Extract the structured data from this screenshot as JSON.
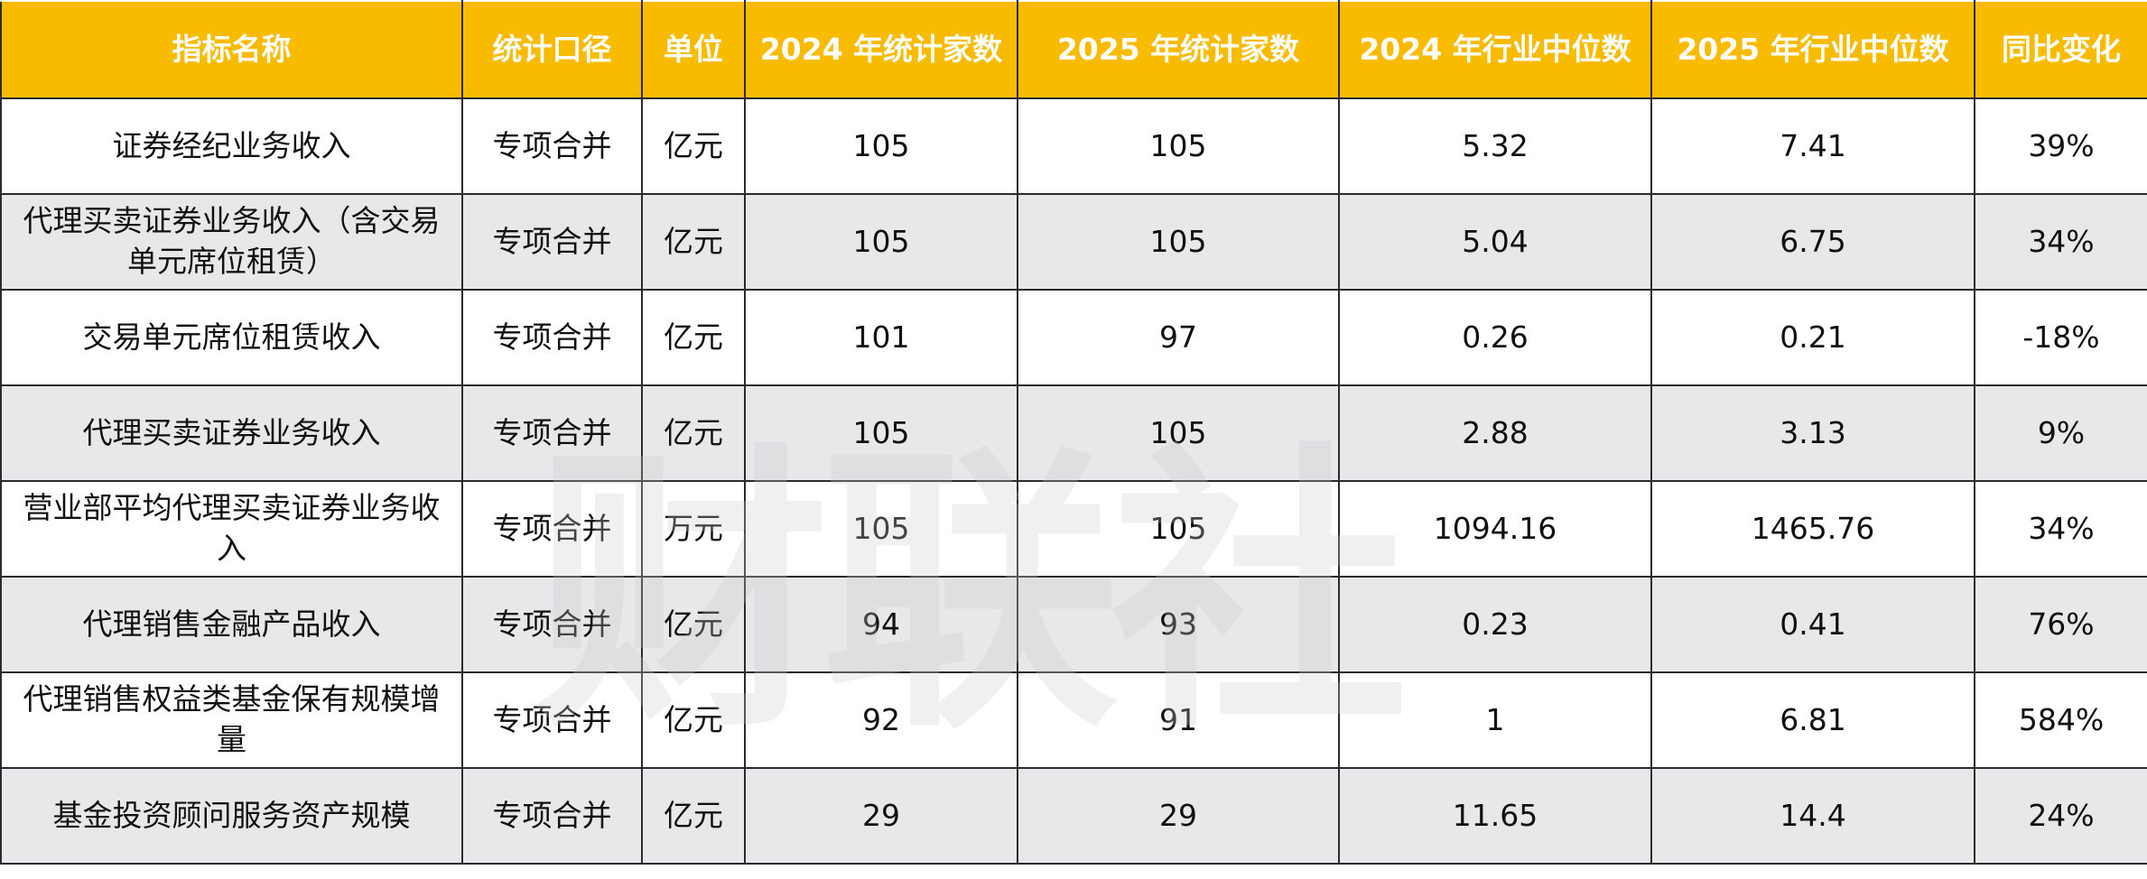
{
  "table": {
    "header": [
      "指标名称",
      "统计口径",
      "单位",
      "2024 年统计家数",
      "2025 年统计家数",
      "2024 年行业中位数",
      "2025 年行业中位数",
      "同比变化"
    ],
    "rows": [
      [
        "证券经纪业务收入",
        "专项合并",
        "亿元",
        "105",
        "105",
        "5.32",
        "7.41",
        "39%"
      ],
      [
        "代理买卖证券业务收入（含交易单元席位租赁）",
        "专项合并",
        "亿元",
        "105",
        "105",
        "5.04",
        "6.75",
        "34%"
      ],
      [
        "交易单元席位租赁收入",
        "专项合并",
        "亿元",
        "101",
        "97",
        "0.26",
        "0.21",
        "-18%"
      ],
      [
        "代理买卖证券业务收入",
        "专项合并",
        "亿元",
        "105",
        "105",
        "2.88",
        "3.13",
        "9%"
      ],
      [
        "营业部平均代理买卖证券业务收入",
        "专项合并",
        "万元",
        "105",
        "105",
        "1094.16",
        "1465.76",
        "34%"
      ],
      [
        "代理销售金融产品收入",
        "专项合并",
        "亿元",
        "94",
        "93",
        "0.23",
        "0.41",
        "76%"
      ],
      [
        "代理销售权益类基金保有规模增量",
        "专项合并",
        "亿元",
        "92",
        "91",
        "1",
        "6.81",
        "584%"
      ],
      [
        "基金投资顾问服务资产规模",
        "专项合并",
        "亿元",
        "29",
        "29",
        "11.65",
        "14.4",
        "24%"
      ]
    ]
  },
  "watermark": "财联社"
}
